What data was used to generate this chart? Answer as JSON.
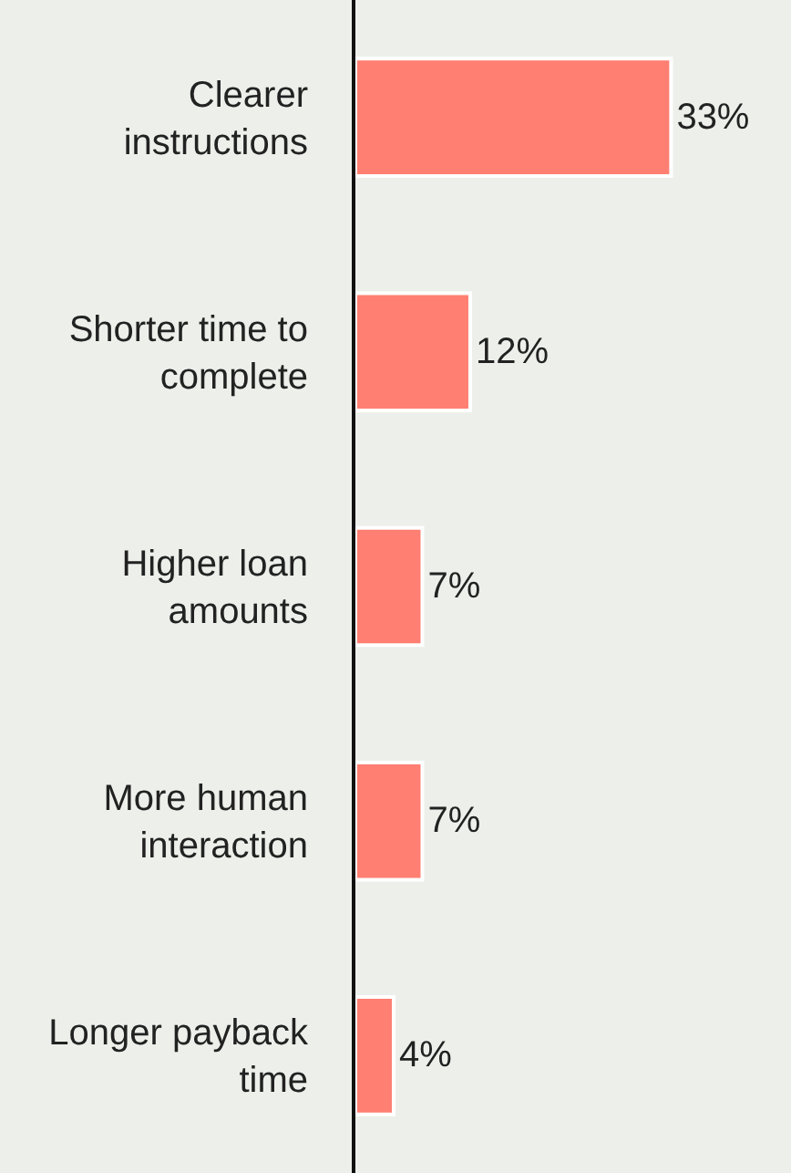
{
  "chart_data": {
    "type": "bar",
    "orientation": "horizontal",
    "categories": [
      "Clearer instructions",
      "Shorter time to complete",
      "Higher loan amounts",
      "More human interaction",
      "Longer payback time"
    ],
    "values": [
      33,
      12,
      7,
      7,
      4
    ],
    "value_labels": [
      "33%",
      "12%",
      "7%",
      "7%",
      "4%"
    ],
    "color": "#ff7f72",
    "grid": false,
    "legend": false,
    "tick_labels": "y"
  }
}
